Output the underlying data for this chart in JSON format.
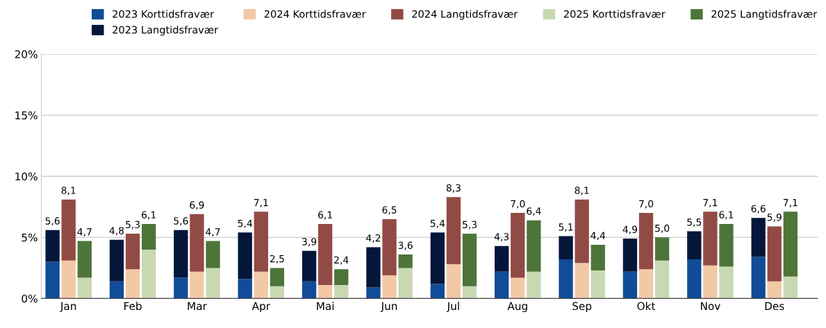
{
  "chart_data": {
    "type": "bar",
    "stacked": true,
    "categories": [
      null,
      "Jan",
      null,
      null,
      null,
      "Feb",
      null,
      null,
      null,
      "Mar",
      null,
      null,
      null,
      "Apr",
      null,
      null,
      null,
      "Mai",
      null,
      null,
      null,
      "Jun",
      null,
      null,
      null,
      "Jul",
      null,
      null,
      null,
      "Aug",
      null,
      null,
      null,
      "Sep",
      null,
      null,
      null,
      "Okt",
      null,
      null,
      null,
      "Nov",
      null,
      null,
      null,
      "Des",
      null,
      null
    ],
    "series": [
      {
        "name": "2023 Korttidsfravær",
        "color": "#114c98",
        "values": [
          3.0,
          null,
          null,
          null,
          1.4,
          null,
          null,
          null,
          1.7,
          null,
          null,
          null,
          1.6,
          null,
          null,
          null,
          1.4,
          null,
          null,
          null,
          0.9,
          null,
          null,
          null,
          1.2,
          null,
          null,
          null,
          2.2,
          null,
          null,
          null,
          3.2,
          null,
          null,
          null,
          2.2,
          null,
          null,
          null,
          3.2,
          null,
          null,
          null,
          3.4,
          null,
          null,
          null
        ]
      },
      {
        "name": "2023 Langtidsfravær",
        "color": "#04173a",
        "values": [
          2.6,
          null,
          null,
          null,
          3.4,
          null,
          null,
          null,
          3.9,
          null,
          null,
          null,
          3.8,
          null,
          null,
          null,
          2.5,
          null,
          null,
          null,
          3.3,
          null,
          null,
          null,
          4.2,
          null,
          null,
          null,
          2.1,
          null,
          null,
          null,
          1.9,
          null,
          null,
          null,
          2.7,
          null,
          null,
          null,
          2.3,
          null,
          null,
          null,
          3.2,
          null,
          null,
          null
        ]
      },
      {
        "name": "2024 Korttidsfravær",
        "color": "#f2c9a5",
        "values": [
          null,
          3.1,
          null,
          null,
          null,
          2.4,
          null,
          null,
          null,
          2.2,
          null,
          null,
          null,
          2.2,
          null,
          null,
          null,
          1.1,
          null,
          null,
          null,
          1.9,
          null,
          null,
          null,
          2.8,
          null,
          null,
          null,
          1.7,
          null,
          null,
          null,
          2.9,
          null,
          null,
          null,
          2.4,
          null,
          null,
          null,
          2.7,
          null,
          null,
          null,
          1.4,
          null,
          null
        ]
      },
      {
        "name": "2024 Langtidsfravær",
        "color": "#924a45",
        "values": [
          null,
          5.0,
          null,
          null,
          null,
          2.9,
          null,
          null,
          null,
          4.7,
          null,
          null,
          null,
          4.9,
          null,
          null,
          null,
          5.0,
          null,
          null,
          null,
          4.6,
          null,
          null,
          null,
          5.5,
          null,
          null,
          null,
          5.3,
          null,
          null,
          null,
          5.2,
          null,
          null,
          null,
          4.6,
          null,
          null,
          null,
          4.4,
          null,
          null,
          null,
          4.5,
          null,
          null
        ]
      },
      {
        "name": "2025 Korttidsfravær",
        "color": "#c8d9b2",
        "values": [
          null,
          null,
          1.7,
          null,
          null,
          null,
          4.0,
          null,
          null,
          null,
          2.5,
          null,
          null,
          null,
          1.0,
          null,
          null,
          null,
          1.1,
          null,
          null,
          null,
          2.5,
          null,
          null,
          null,
          1.0,
          null,
          null,
          null,
          2.2,
          null,
          null,
          null,
          2.3,
          null,
          null,
          null,
          3.1,
          null,
          null,
          null,
          2.6,
          null,
          null,
          null,
          1.8,
          null
        ]
      },
      {
        "name": "2025 Langtidsfravær",
        "color": "#4e7539",
        "values": [
          null,
          null,
          3.0,
          null,
          null,
          null,
          2.1,
          null,
          null,
          null,
          2.2,
          null,
          null,
          null,
          1.5,
          null,
          null,
          null,
          1.3,
          null,
          null,
          null,
          1.1,
          null,
          null,
          null,
          4.3,
          null,
          null,
          null,
          4.2,
          null,
          null,
          null,
          2.1,
          null,
          null,
          null,
          1.9,
          null,
          null,
          null,
          3.5,
          null,
          null,
          null,
          5.3,
          null
        ]
      }
    ],
    "totals": [
      "5,6",
      "8,1",
      "4,7",
      null,
      "4,8",
      "5,3",
      "6,1",
      null,
      "5,6",
      "6,9",
      "4,7",
      null,
      "5,4",
      "7,1",
      "2,5",
      null,
      "3,9",
      "6,1",
      "2,4",
      null,
      "4,2",
      "6,5",
      "3,6",
      null,
      "5,4",
      "8,3",
      "5,3",
      null,
      "4,3",
      "7,0",
      "6,4",
      null,
      "5,1",
      "8,1",
      "4,4",
      null,
      "4,9",
      "7,0",
      "5,0",
      null,
      "5,5",
      "7,1",
      "6,1",
      null,
      "6,6",
      "5,9",
      "7,1",
      null
    ],
    "ylim": [
      0,
      20
    ],
    "yticks": [
      {
        "value": 0,
        "label": "0%"
      },
      {
        "value": 5,
        "label": "5%"
      },
      {
        "value": 10,
        "label": "10%"
      },
      {
        "value": 15,
        "label": "15%"
      },
      {
        "value": 20,
        "label": "20%"
      }
    ],
    "grid": "y",
    "legend": "top"
  }
}
